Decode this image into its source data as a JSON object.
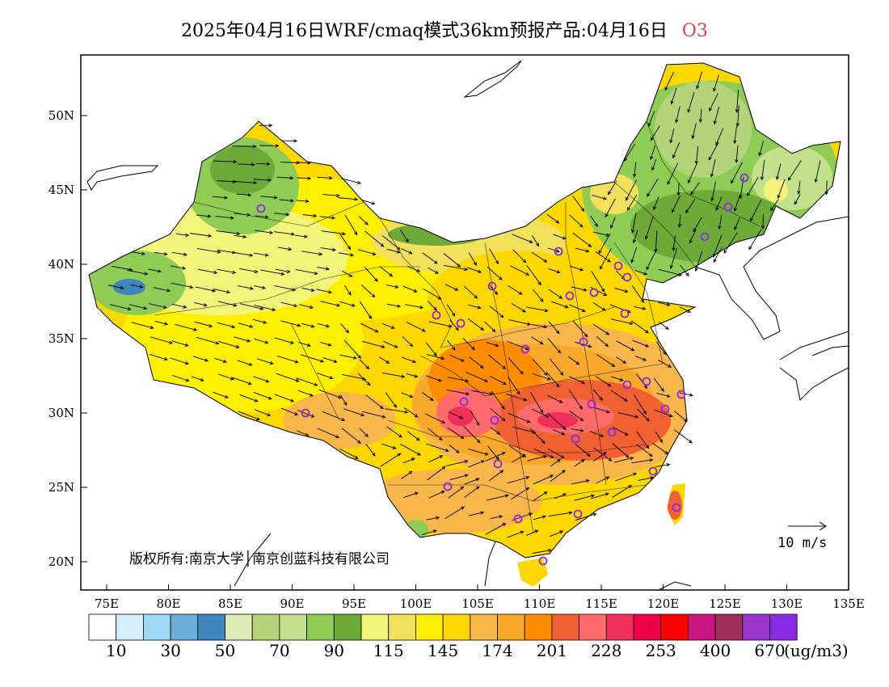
{
  "title": {
    "main": "2025年04月16日WRF/cmaq模式36km预报产品:04月16日",
    "species": "O3"
  },
  "axes": {
    "lon_ticks": [
      "75E",
      "80E",
      "85E",
      "90E",
      "95E",
      "100E",
      "105E",
      "110E",
      "115E",
      "120E",
      "125E",
      "130E",
      "135E"
    ],
    "lat_ticks": [
      "50N",
      "45N",
      "40N",
      "35N",
      "30N",
      "25N",
      "20N"
    ]
  },
  "copyright": "版权所有:南京大学│南京创蓝科技有限公司",
  "wind_scale_label": "10 m/s",
  "legend": {
    "labels": [
      "10",
      "30",
      "50",
      "70",
      "90",
      "115",
      "145",
      "174",
      "201",
      "228",
      "253",
      "400",
      "670"
    ],
    "unit": "(ug/m3)",
    "colors": [
      "#ffffff",
      "#d6f0fb",
      "#9fd8f4",
      "#6aaedc",
      "#3f86bf",
      "#dcebb8",
      "#b4d47a",
      "#c3e08c",
      "#8fcc55",
      "#6eaa38",
      "#f2f57a",
      "#f3e05c",
      "#fff000",
      "#fdd700",
      "#f9b64a",
      "#f8a82a",
      "#ff8c00",
      "#f06030",
      "#ff6a6a",
      "#f0305a",
      "#f00046",
      "#ff0000",
      "#c8157f",
      "#a0305a",
      "#9a36cc",
      "#8a2be2"
    ]
  },
  "cities": [
    "station-1",
    "station-2",
    "station-3",
    "station-4",
    "station-5",
    "station-6",
    "station-7",
    "station-8",
    "station-9",
    "station-10",
    "station-11",
    "station-12",
    "station-13",
    "station-14",
    "station-15",
    "station-16",
    "station-17",
    "station-18",
    "station-19",
    "station-20",
    "station-21",
    "station-22",
    "station-23",
    "station-24",
    "station-25",
    "station-26",
    "station-27",
    "station-28",
    "station-29",
    "station-30",
    "station-31",
    "station-32"
  ]
}
